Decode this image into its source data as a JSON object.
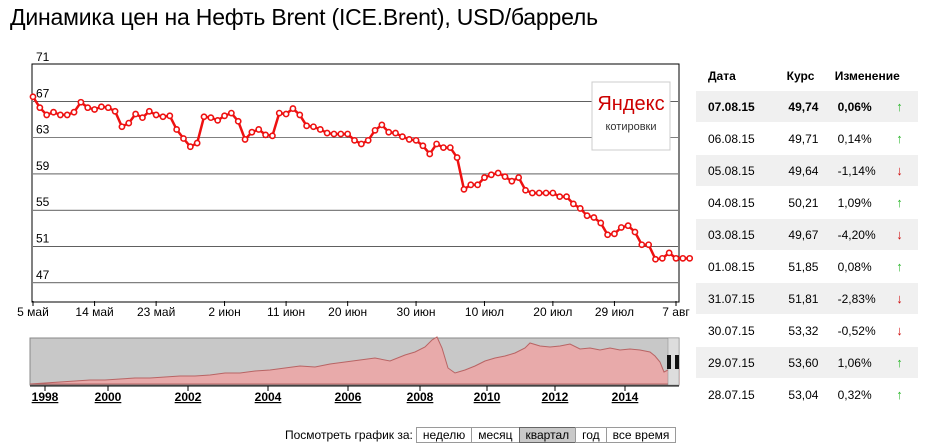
{
  "title": "Динамика цен на Нефть Brent (ICE.Brent), USD/баррель",
  "logo": {
    "brand": "Яндекс",
    "sub": "котировки"
  },
  "chart_data": {
    "type": "line",
    "ylim": [
      45,
      71
    ],
    "yticks": [
      71,
      67,
      63,
      59,
      55,
      51,
      47
    ],
    "xlim_days": [
      0,
      94
    ],
    "xticks": [
      {
        "label": "5 май",
        "day": 0
      },
      {
        "label": "14 май",
        "day": 9
      },
      {
        "label": "23 май",
        "day": 18
      },
      {
        "label": "2 июн",
        "day": 28
      },
      {
        "label": "11 июн",
        "day": 37
      },
      {
        "label": "20 июн",
        "day": 46
      },
      {
        "label": "30 июн",
        "day": 56
      },
      {
        "label": "10 июл",
        "day": 66
      },
      {
        "label": "20 июл",
        "day": 76
      },
      {
        "label": "29 июл",
        "day": 85
      },
      {
        "label": "7 авг",
        "day": 94
      }
    ],
    "series": [
      {
        "color": "#ee1111",
        "points": [
          [
            0,
            67.5
          ],
          [
            1,
            66.3
          ],
          [
            2,
            65.5
          ],
          [
            3,
            65.8
          ],
          [
            4,
            65.5
          ],
          [
            5,
            65.5
          ],
          [
            6,
            65.8
          ],
          [
            7,
            66.9
          ],
          [
            8,
            66.3
          ],
          [
            9,
            66.1
          ],
          [
            10,
            66.4
          ],
          [
            11,
            66.3
          ],
          [
            12,
            65.9
          ],
          [
            13,
            64.2
          ],
          [
            14,
            64.6
          ],
          [
            15,
            65.6
          ],
          [
            16,
            65.2
          ],
          [
            17,
            65.9
          ],
          [
            18,
            65.5
          ],
          [
            19,
            65.3
          ],
          [
            20,
            65.4
          ],
          [
            21,
            63.9
          ],
          [
            22,
            62.9
          ],
          [
            23,
            62.0
          ],
          [
            24,
            62.4
          ],
          [
            25,
            65.3
          ],
          [
            26,
            65.2
          ],
          [
            27,
            64.9
          ],
          [
            28,
            65.4
          ],
          [
            29,
            65.7
          ],
          [
            30,
            64.8
          ],
          [
            31,
            62.8
          ],
          [
            32,
            63.6
          ],
          [
            33,
            63.9
          ],
          [
            34,
            63.3
          ],
          [
            35,
            63.2
          ],
          [
            36,
            65.7
          ],
          [
            37,
            65.6
          ],
          [
            38,
            66.2
          ],
          [
            39,
            65.5
          ],
          [
            40,
            64.3
          ],
          [
            41,
            64.2
          ],
          [
            42,
            63.9
          ],
          [
            43,
            63.5
          ],
          [
            44,
            63.4
          ],
          [
            45,
            63.4
          ],
          [
            46,
            63.4
          ],
          [
            47,
            62.7
          ],
          [
            48,
            62.3
          ],
          [
            49,
            62.7
          ],
          [
            50,
            63.8
          ],
          [
            51,
            64.4
          ],
          [
            52,
            63.6
          ],
          [
            53,
            63.5
          ],
          [
            54,
            63.1
          ],
          [
            55,
            62.8
          ],
          [
            56,
            62.7
          ],
          [
            57,
            62.1
          ],
          [
            58,
            61.2
          ],
          [
            59,
            62.3
          ],
          [
            60,
            61.9
          ],
          [
            61,
            61.9
          ],
          [
            62,
            60.8
          ],
          [
            63,
            57.3
          ],
          [
            64,
            57.8
          ],
          [
            65,
            57.8
          ],
          [
            66,
            58.6
          ],
          [
            67,
            58.9
          ],
          [
            68,
            59.1
          ],
          [
            69,
            58.7
          ],
          [
            70,
            58.2
          ],
          [
            71,
            58.6
          ],
          [
            72,
            57.2
          ],
          [
            73,
            56.9
          ],
          [
            74,
            56.9
          ],
          [
            75,
            56.9
          ],
          [
            76,
            56.9
          ],
          [
            77,
            56.5
          ],
          [
            78,
            56.5
          ],
          [
            79,
            55.7
          ],
          [
            80,
            55.2
          ],
          [
            81,
            54.4
          ],
          [
            82,
            54.2
          ],
          [
            83,
            53.6
          ],
          [
            84,
            52.3
          ],
          [
            85,
            52.4
          ],
          [
            86,
            53.1
          ],
          [
            87,
            53.3
          ],
          [
            88,
            52.6
          ],
          [
            89,
            51.2
          ],
          [
            90,
            51.2
          ],
          [
            91,
            49.6
          ],
          [
            92,
            49.7
          ],
          [
            93,
            50.3
          ],
          [
            94,
            49.7
          ],
          [
            95,
            49.7
          ],
          [
            96,
            49.7
          ]
        ]
      }
    ]
  },
  "navigator": {
    "ticks": [
      "1998",
      "2000",
      "2002",
      "2004",
      "2006",
      "2008",
      "2010",
      "2012",
      "2014"
    ]
  },
  "period_bar": {
    "label": "Посмотреть график за:",
    "buttons": [
      {
        "label": "неделю",
        "active": false
      },
      {
        "label": "месяц",
        "active": false
      },
      {
        "label": "квартал",
        "active": true
      },
      {
        "label": "год",
        "active": false
      },
      {
        "label": "все время",
        "active": false
      }
    ]
  },
  "rates": {
    "headers": {
      "date": "Дата",
      "rate": "Курс",
      "change": "Изменение"
    },
    "rows": [
      {
        "date": "07.08.15",
        "rate": "49,74",
        "change": "0,06%",
        "dir": "up"
      },
      {
        "date": "06.08.15",
        "rate": "49,71",
        "change": "0,14%",
        "dir": "up"
      },
      {
        "date": "05.08.15",
        "rate": "49,64",
        "change": "-1,14%",
        "dir": "down"
      },
      {
        "date": "04.08.15",
        "rate": "50,21",
        "change": "1,09%",
        "dir": "up"
      },
      {
        "date": "03.08.15",
        "rate": "49,67",
        "change": "-4,20%",
        "dir": "down"
      },
      {
        "date": "01.08.15",
        "rate": "51,85",
        "change": "0,08%",
        "dir": "up"
      },
      {
        "date": "31.07.15",
        "rate": "51,81",
        "change": "-2,83%",
        "dir": "down"
      },
      {
        "date": "30.07.15",
        "rate": "53,32",
        "change": "-0,52%",
        "dir": "down"
      },
      {
        "date": "29.07.15",
        "rate": "53,60",
        "change": "1,06%",
        "dir": "up"
      },
      {
        "date": "28.07.15",
        "rate": "53,04",
        "change": "0,32%",
        "dir": "up"
      }
    ]
  }
}
